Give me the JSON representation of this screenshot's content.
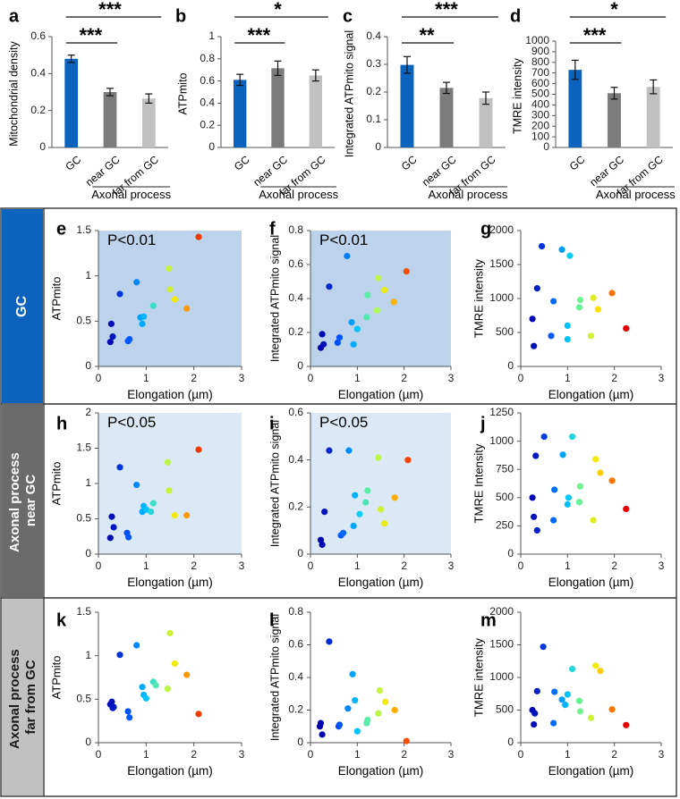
{
  "colors": {
    "gc": "#0b63be",
    "near": "#7b7b7b",
    "far": "#c1c1c1",
    "shade_gc": "#bcd3eb",
    "shade_near": "#dbe9f6",
    "row_gc": "#0b63be",
    "row_near": "#6b6b6b",
    "row_far": "#c1c1c1"
  },
  "row_labels": {
    "gc": [
      "GC"
    ],
    "near": [
      "Axonal process",
      "near GC"
    ],
    "far": [
      "Axonal process",
      "far from GC"
    ]
  },
  "axonal_process_label": "Axonal process",
  "chart_data": [
    {
      "id": "a",
      "type": "bar",
      "panel_label": "a",
      "ylabel": "Mitochondrial density",
      "ylim": [
        0,
        0.6
      ],
      "yticks": [
        "0",
        "0.2",
        "0.4",
        "0.6"
      ],
      "categories": [
        "GC",
        "near GC",
        "far from GC"
      ],
      "values": [
        0.48,
        0.3,
        0.265
      ],
      "errors": [
        0.02,
        0.02,
        0.025
      ],
      "significance": [
        {
          "from": 0,
          "to": 2,
          "label": "***",
          "level": 2
        },
        {
          "from": 0,
          "to": 1,
          "label": "***",
          "level": 1
        }
      ]
    },
    {
      "id": "b",
      "type": "bar",
      "panel_label": "b",
      "ylabel": "ATPmito",
      "ylim": [
        0,
        1
      ],
      "yticks": [
        "0",
        "0.2",
        "0.4",
        "0.6",
        "0.8",
        "1"
      ],
      "categories": [
        "GC",
        "near GC",
        "far from GC"
      ],
      "values": [
        0.61,
        0.715,
        0.65
      ],
      "errors": [
        0.05,
        0.065,
        0.05
      ],
      "significance": [
        {
          "from": 0,
          "to": 2,
          "label": "*",
          "level": 2
        },
        {
          "from": 0,
          "to": 1,
          "label": "***",
          "level": 1
        }
      ]
    },
    {
      "id": "c",
      "type": "bar",
      "panel_label": "c",
      "ylabel": "Integrated ATPmito signal",
      "ylim": [
        0,
        0.4
      ],
      "yticks": [
        "0",
        "0.1",
        "0.2",
        "0.3",
        "0.4"
      ],
      "categories": [
        "GC",
        "near GC",
        "far from GC"
      ],
      "values": [
        0.298,
        0.215,
        0.178
      ],
      "errors": [
        0.03,
        0.02,
        0.022
      ],
      "significance": [
        {
          "from": 0,
          "to": 2,
          "label": "***",
          "level": 2
        },
        {
          "from": 0,
          "to": 1,
          "label": "**",
          "level": 1
        }
      ]
    },
    {
      "id": "d",
      "type": "bar",
      "panel_label": "d",
      "ylabel": "TMRE intensity",
      "ylim": [
        0,
        1000
      ],
      "yticks": [
        "0",
        "100",
        "200",
        "300",
        "400",
        "500",
        "600",
        "700",
        "800",
        "900",
        "1000"
      ],
      "categories": [
        "GC",
        "near GC",
        "far from GC"
      ],
      "values": [
        730,
        510,
        570
      ],
      "errors": [
        90,
        55,
        65
      ],
      "significance": [
        {
          "from": 0,
          "to": 2,
          "label": "*",
          "level": 2
        },
        {
          "from": 0,
          "to": 1,
          "label": "***",
          "level": 1
        }
      ]
    },
    {
      "id": "e",
      "type": "scatter",
      "panel_label": "e",
      "row": "gc",
      "shaded": true,
      "annotation": "P<0.01",
      "xlabel": "Elongation (µm)",
      "ylabel": "ATPmito",
      "xlim": [
        0,
        3
      ],
      "ylim": [
        0,
        1.5
      ],
      "xticks": [
        "0",
        "1",
        "2",
        "3"
      ],
      "yticks": [
        "0",
        "0.5",
        "1",
        "1.5"
      ],
      "x": [
        0.25,
        0.27,
        0.3,
        0.45,
        0.62,
        0.65,
        0.8,
        0.88,
        0.92,
        0.95,
        1.15,
        1.48,
        1.5,
        1.6,
        1.85,
        2.1
      ],
      "y": [
        0.27,
        0.47,
        0.33,
        0.8,
        0.28,
        0.3,
        0.93,
        0.54,
        0.47,
        0.55,
        0.67,
        1.08,
        0.85,
        0.74,
        0.64,
        1.43
      ]
    },
    {
      "id": "f",
      "type": "scatter",
      "panel_label": "f",
      "row": "gc",
      "shaded": true,
      "annotation": "P<0.01",
      "xlabel": "Elongation (µm)",
      "ylabel": "Integrated ATPmito signal",
      "xlim": [
        0,
        3
      ],
      "ylim": [
        0,
        0.8
      ],
      "xticks": [
        "0",
        "1",
        "2",
        "3"
      ],
      "yticks": [
        "0",
        "0.2",
        "0.4",
        "0.6",
        "0.8"
      ],
      "x": [
        0.22,
        0.25,
        0.28,
        0.4,
        0.58,
        0.62,
        0.78,
        0.88,
        0.92,
        1.0,
        1.2,
        1.22,
        1.42,
        1.45,
        1.58,
        1.78,
        2.05
      ],
      "y": [
        0.11,
        0.19,
        0.13,
        0.47,
        0.14,
        0.17,
        0.65,
        0.26,
        0.13,
        0.22,
        0.29,
        0.42,
        0.33,
        0.52,
        0.45,
        0.38,
        0.56
      ]
    },
    {
      "id": "g",
      "type": "scatter",
      "panel_label": "g",
      "row": "gc",
      "shaded": false,
      "annotation": "",
      "xlabel": "Elongation (µm)",
      "ylabel": "TMRE intensity",
      "xlim": [
        0,
        3
      ],
      "ylim": [
        0,
        2000
      ],
      "xticks": [
        "0",
        "1",
        "2",
        "3"
      ],
      "yticks": [
        "0",
        "500",
        "1000",
        "1500",
        "2000"
      ],
      "x": [
        0.25,
        0.28,
        0.35,
        0.45,
        0.65,
        0.7,
        0.88,
        1.0,
        1.0,
        1.05,
        1.25,
        1.27,
        1.5,
        1.55,
        1.65,
        1.95,
        2.25
      ],
      "y": [
        700,
        300,
        1150,
        1770,
        450,
        960,
        1720,
        400,
        600,
        1630,
        870,
        980,
        450,
        1010,
        840,
        1080,
        560
      ]
    },
    {
      "id": "h",
      "type": "scatter",
      "panel_label": "h",
      "row": "near",
      "shaded": true,
      "annotation": "P<0.05",
      "xlabel": "Elongation (µm)",
      "ylabel": "ATPmito",
      "xlim": [
        0,
        3
      ],
      "ylim": [
        0,
        2
      ],
      "xticks": [
        "0",
        "1",
        "2",
        "3"
      ],
      "yticks": [
        "0",
        "0.5",
        "1",
        "1.5",
        "2"
      ],
      "x": [
        0.25,
        0.28,
        0.32,
        0.45,
        0.6,
        0.63,
        0.8,
        0.92,
        0.95,
        1.0,
        1.1,
        1.15,
        1.45,
        1.48,
        1.6,
        1.85,
        2.1
      ],
      "y": [
        0.23,
        0.53,
        0.38,
        1.23,
        0.3,
        0.24,
        0.98,
        0.6,
        0.68,
        0.63,
        0.6,
        0.72,
        1.3,
        0.9,
        0.55,
        0.55,
        1.48
      ]
    },
    {
      "id": "i",
      "type": "scatter",
      "panel_label": "i",
      "row": "near",
      "shaded": true,
      "annotation": "P<0.05",
      "xlabel": "Elongation (µm)",
      "ylabel": "Integrated ATPmito signal",
      "xlim": [
        0,
        3
      ],
      "ylim": [
        0,
        0.6
      ],
      "xticks": [
        "0",
        "1",
        "2",
        "3"
      ],
      "yticks": [
        "0",
        "0.2",
        "0.4",
        "0.6"
      ],
      "x": [
        0.22,
        0.25,
        0.3,
        0.4,
        0.65,
        0.7,
        0.82,
        0.92,
        0.95,
        1.05,
        1.18,
        1.22,
        1.45,
        1.5,
        1.58,
        1.8,
        2.08
      ],
      "y": [
        0.06,
        0.04,
        0.18,
        0.44,
        0.08,
        0.09,
        0.44,
        0.12,
        0.25,
        0.17,
        0.22,
        0.27,
        0.41,
        0.19,
        0.13,
        0.24,
        0.4
      ]
    },
    {
      "id": "j",
      "type": "scatter",
      "panel_label": "j",
      "row": "near",
      "shaded": false,
      "annotation": "",
      "xlabel": "Elongation (µm)",
      "ylabel": "TMRE Intensity",
      "xlim": [
        0,
        3
      ],
      "ylim": [
        0,
        1250
      ],
      "xticks": [
        "0",
        "1",
        "2",
        "3"
      ],
      "yticks": [
        "0",
        "250",
        "500",
        "750",
        "1000",
        "1250"
      ],
      "x": [
        0.25,
        0.28,
        0.32,
        0.35,
        0.5,
        0.7,
        0.72,
        0.9,
        1.0,
        1.02,
        1.1,
        1.25,
        1.27,
        1.55,
        1.6,
        1.7,
        1.95,
        2.25
      ],
      "y": [
        500,
        330,
        870,
        210,
        1040,
        300,
        570,
        880,
        440,
        500,
        1040,
        460,
        600,
        300,
        840,
        720,
        650,
        400
      ]
    },
    {
      "id": "k",
      "type": "scatter",
      "panel_label": "k",
      "row": "far",
      "shaded": false,
      "annotation": "",
      "xlabel": "Elongation (µm)",
      "ylabel": "ATPmito",
      "xlim": [
        0,
        3
      ],
      "ylim": [
        0,
        1.5
      ],
      "xticks": [
        "0",
        "1",
        "2",
        "3"
      ],
      "yticks": [
        "0",
        "0.5",
        "1",
        "1.5"
      ],
      "x": [
        0.25,
        0.28,
        0.3,
        0.32,
        0.45,
        0.62,
        0.65,
        0.8,
        0.92,
        0.95,
        1.0,
        1.15,
        1.2,
        1.45,
        1.5,
        1.6,
        1.85,
        2.1
      ],
      "y": [
        0.44,
        0.47,
        0.4,
        0.41,
        1.01,
        0.36,
        0.29,
        1.12,
        0.64,
        0.55,
        0.51,
        0.7,
        0.66,
        0.62,
        1.26,
        0.91,
        0.78,
        0.33
      ]
    },
    {
      "id": "l",
      "type": "scatter",
      "panel_label": "l",
      "row": "far",
      "shaded": false,
      "annotation": "",
      "xlabel": "Elongation (µm)",
      "ylabel": "Integrated ATPmito signal",
      "xlim": [
        0,
        3
      ],
      "ylim": [
        0,
        0.8
      ],
      "xticks": [
        "0",
        "1",
        "2",
        "3"
      ],
      "yticks": [
        "0",
        "0.2",
        "0.4",
        "0.6",
        "0.8"
      ],
      "x": [
        0.2,
        0.22,
        0.25,
        0.4,
        0.6,
        0.62,
        0.8,
        0.9,
        0.95,
        1.0,
        1.2,
        1.22,
        1.45,
        1.48,
        1.6,
        1.8,
        2.05
      ],
      "y": [
        0.1,
        0.12,
        0.05,
        0.62,
        0.1,
        0.11,
        0.21,
        0.42,
        0.26,
        0.07,
        0.12,
        0.14,
        0.18,
        0.32,
        0.25,
        0.2,
        0.01
      ]
    },
    {
      "id": "m",
      "type": "scatter",
      "panel_label": "m",
      "row": "far",
      "shaded": false,
      "annotation": "",
      "xlabel": "Elongation (µm)",
      "ylabel": "TMRE intensity",
      "xlim": [
        0,
        3
      ],
      "ylim": [
        0,
        2000
      ],
      "xticks": [
        "0",
        "1",
        "2",
        "3"
      ],
      "yticks": [
        "0",
        "500",
        "1000",
        "1500",
        "2000"
      ],
      "x": [
        0.25,
        0.28,
        0.3,
        0.35,
        0.48,
        0.7,
        0.72,
        0.88,
        0.95,
        1.0,
        1.1,
        1.25,
        1.27,
        1.5,
        1.6,
        1.7,
        1.95,
        2.25
      ],
      "y": [
        500,
        280,
        450,
        790,
        1470,
        300,
        780,
        660,
        580,
        740,
        1130,
        640,
        480,
        380,
        1180,
        1100,
        510,
        270
      ]
    }
  ]
}
